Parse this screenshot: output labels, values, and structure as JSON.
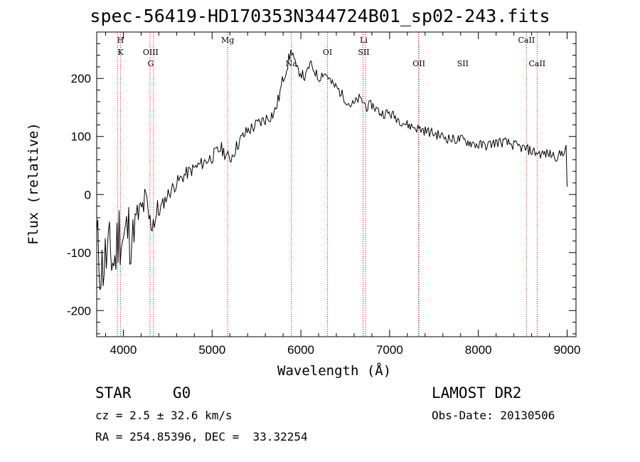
{
  "chart_data": {
    "type": "line",
    "title": "spec-56419-HD170353N344724B01_sp02-243.fits",
    "xlabel": "Wavelength (Å)",
    "ylabel": "Flux (relative)",
    "xlim": [
      3700,
      9100
    ],
    "ylim": [
      -245,
      280
    ],
    "xticks": [
      4000,
      5000,
      6000,
      7000,
      8000,
      9000
    ],
    "yticks": [
      -200,
      -100,
      0,
      100,
      200
    ],
    "grid": false,
    "series": [
      {
        "x": [
          3700,
          3750,
          3800,
          3850,
          3900,
          3950,
          4000,
          4050,
          4100,
          4150,
          4200,
          4250,
          4300,
          4350,
          4400,
          4500,
          4600,
          4700,
          4800,
          4900,
          5000,
          5100,
          5200,
          5300,
          5400,
          5500,
          5600,
          5700,
          5750,
          5800,
          5850,
          5880,
          5900,
          5950,
          6000,
          6050,
          6100,
          6150,
          6200,
          6250,
          6300,
          6350,
          6400,
          6450,
          6500,
          6550,
          6600,
          6650,
          6700,
          6750,
          6800,
          6900,
          7000,
          7100,
          7200,
          7300,
          7400,
          7500,
          7600,
          7700,
          7800,
          7900,
          8000,
          8100,
          8200,
          8300,
          8400,
          8500,
          8600,
          8700,
          8800,
          8900,
          8990,
          9000
        ],
        "y": [
          -80,
          -130,
          -110,
          -100,
          -120,
          -60,
          -80,
          -60,
          -70,
          -40,
          -30,
          -10,
          -50,
          -40,
          -30,
          0,
          20,
          35,
          45,
          55,
          65,
          80,
          60,
          90,
          110,
          120,
          130,
          140,
          165,
          200,
          225,
          240,
          250,
          215,
          210,
          200,
          225,
          215,
          200,
          210,
          205,
          190,
          185,
          175,
          165,
          155,
          155,
          165,
          160,
          150,
          155,
          140,
          140,
          130,
          120,
          115,
          110,
          105,
          100,
          95,
          95,
          90,
          85,
          85,
          90,
          90,
          85,
          80,
          75,
          70,
          70,
          65,
          80,
          5
        ]
      }
    ],
    "line_labels": [
      {
        "x": 3968,
        "labels": [
          "H",
          "K"
        ]
      },
      {
        "x": 4308,
        "labels": [
          "OIII",
          "G"
        ]
      },
      {
        "x": 5175,
        "labels": [
          "Mg"
        ]
      },
      {
        "x": 5893,
        "labels": [
          "Na"
        ]
      },
      {
        "x": 6300,
        "labels": [
          "OI"
        ]
      },
      {
        "x": 6708,
        "labels": [
          "Li",
          "SII"
        ]
      },
      {
        "x": 7330,
        "labels": [
          "OII"
        ]
      },
      {
        "x": 7825,
        "labels": [
          "SII"
        ]
      },
      {
        "x": 8542,
        "labels": [
          "CaII"
        ]
      },
      {
        "x": 8662,
        "labels": [
          "CaII"
        ]
      }
    ],
    "line_markers": [
      3934,
      3968,
      4300,
      4340,
      5175,
      5893,
      6300,
      6700,
      6730,
      7330,
      7325,
      8542,
      8662
    ],
    "colors": {
      "spectrum": "#000000",
      "line_markers": "#cc0000",
      "axes": "#000000"
    }
  },
  "info": {
    "class": "STAR",
    "subclass": "G0",
    "survey": "LAMOST DR2",
    "cz": "cz = 2.5 ± 32.6 km/s",
    "obs_date": "Obs-Date: 20130506",
    "coords": "RA = 254.85396, DEC =  33.32254"
  }
}
